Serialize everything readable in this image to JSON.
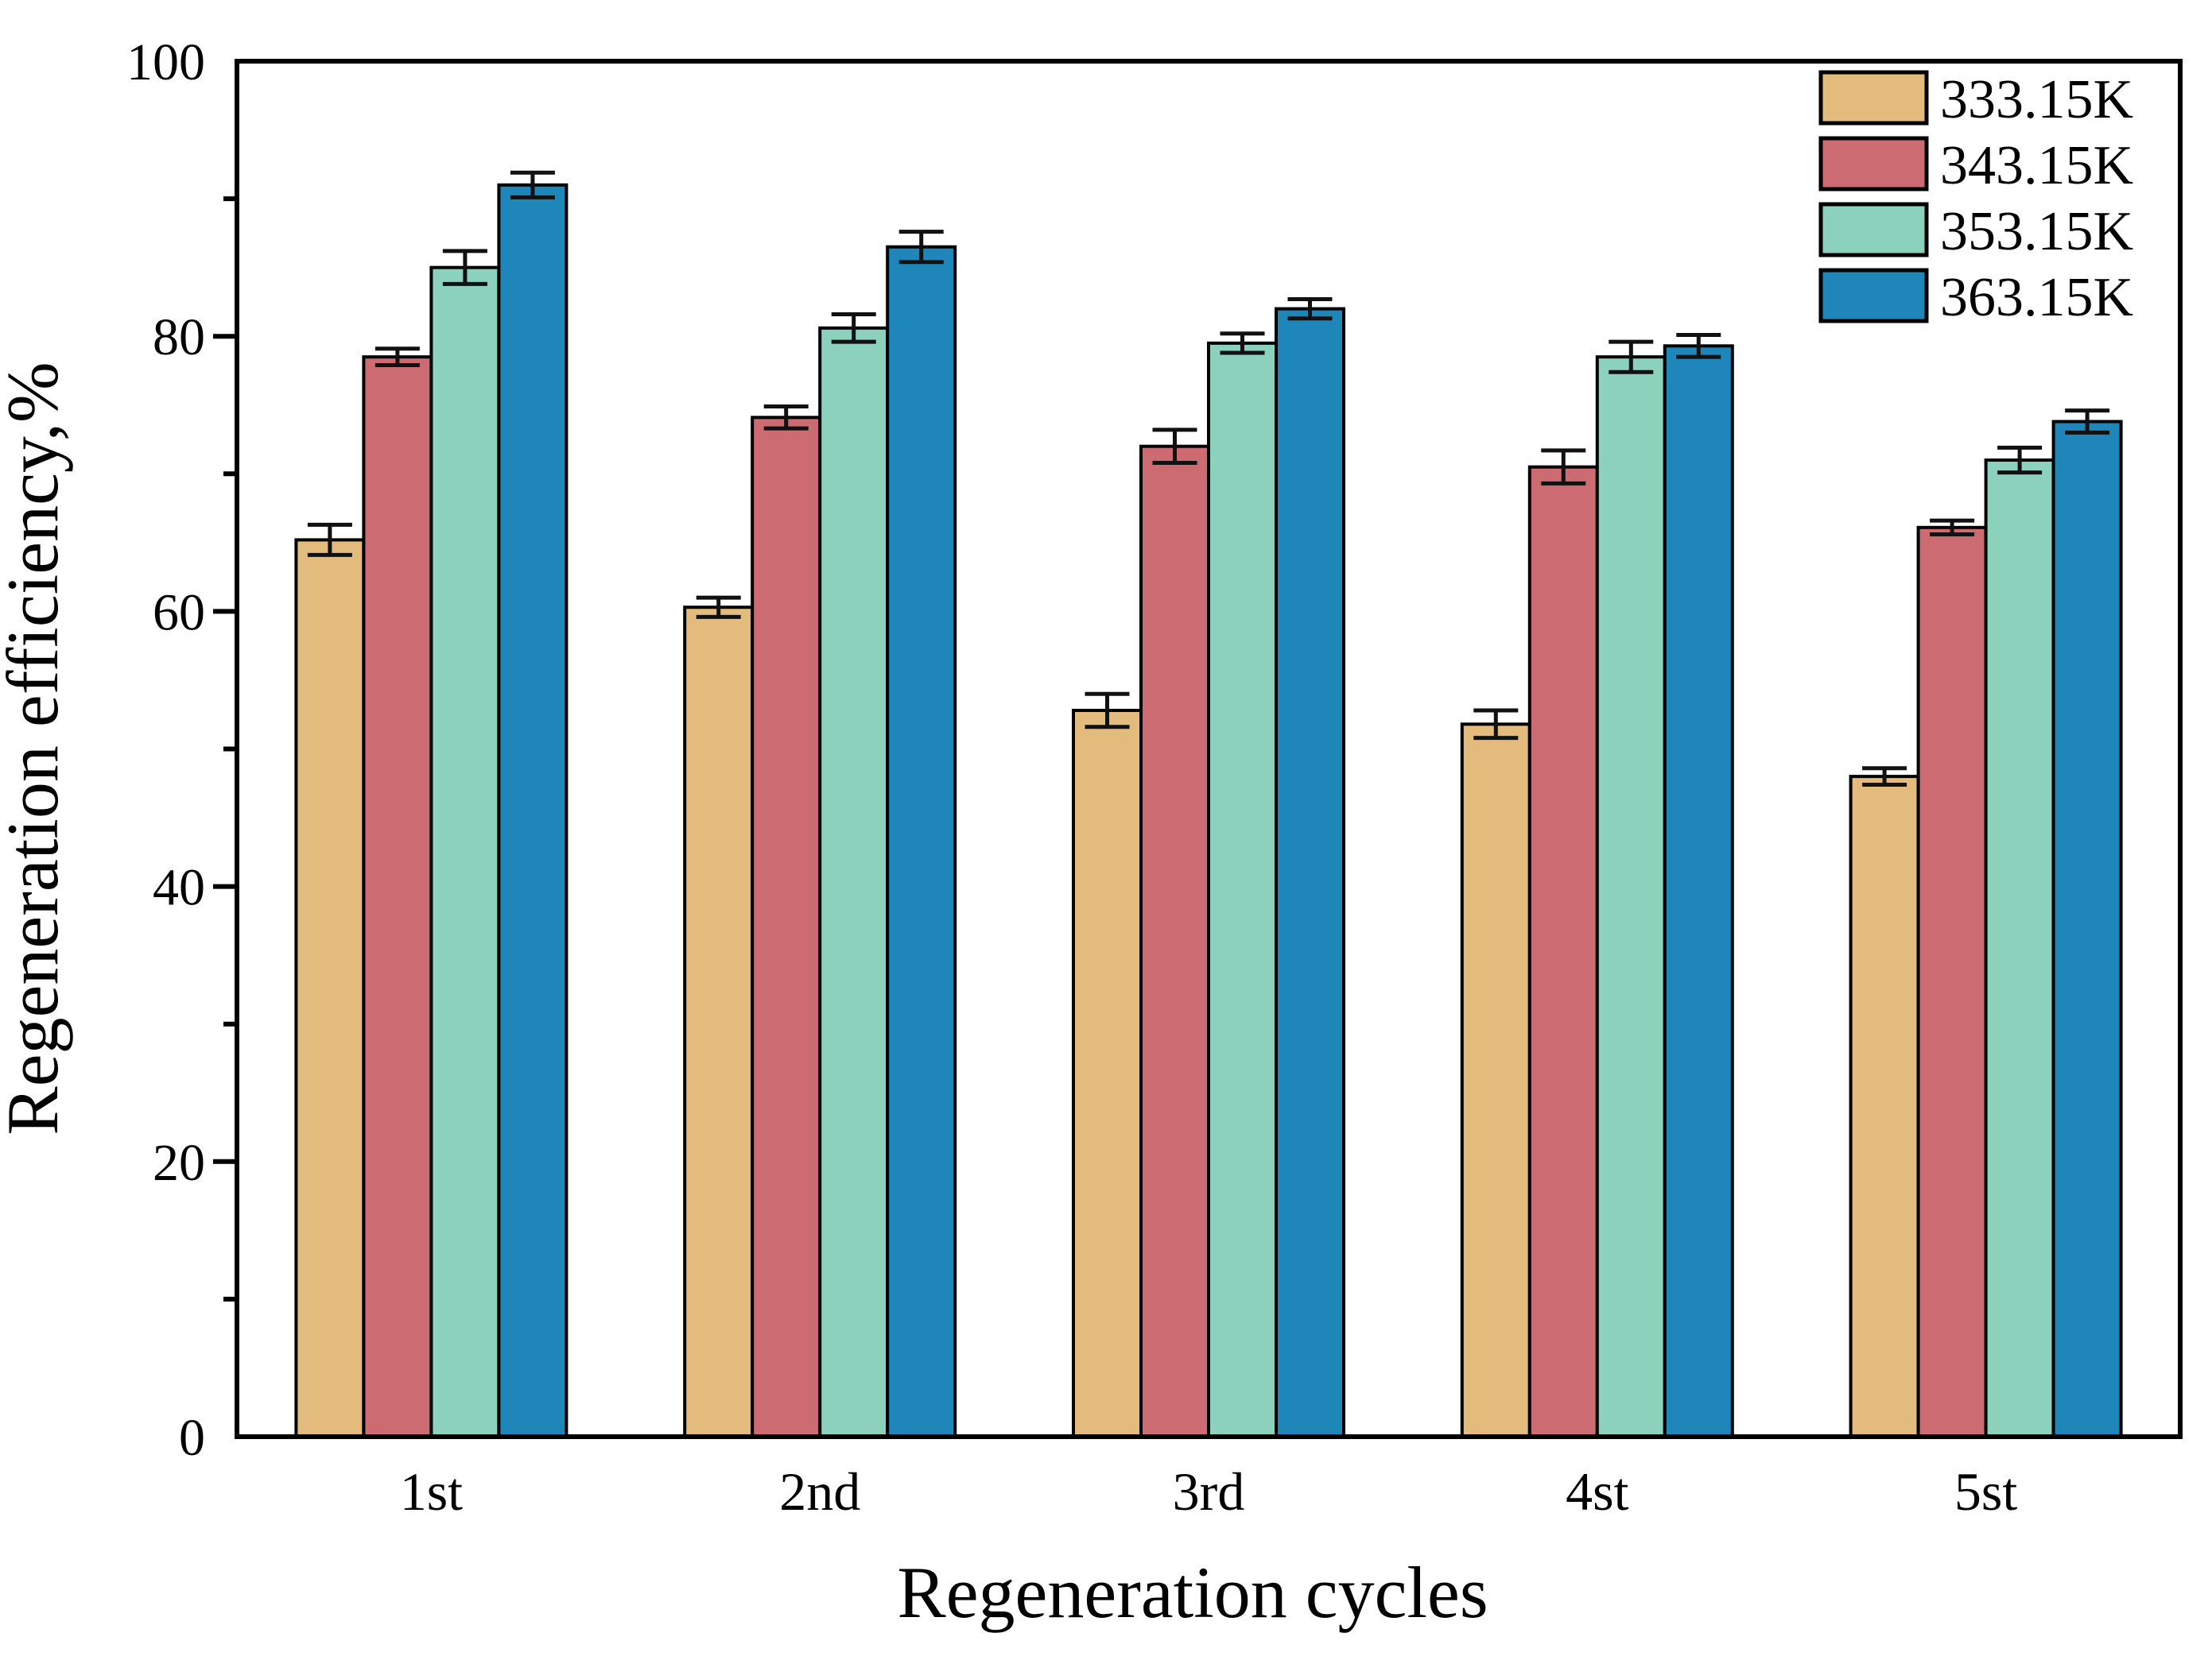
{
  "chart_data": {
    "type": "bar",
    "title": "",
    "xlabel": "Regeneration cycles",
    "ylabel": "Regeneration efficiency,%",
    "categories": [
      "1st",
      "2nd",
      "3rd",
      "4st",
      "5st"
    ],
    "series": [
      {
        "name": "333.15K",
        "color": "#E3BB7C",
        "values": [
          65.2,
          60.3,
          52.8,
          51.8,
          48.0
        ],
        "errors": [
          1.1,
          0.7,
          1.2,
          1.0,
          0.6
        ]
      },
      {
        "name": "343.15K",
        "color": "#CC6B72",
        "values": [
          78.5,
          74.1,
          72.0,
          70.5,
          66.1
        ],
        "errors": [
          0.6,
          0.8,
          1.2,
          1.2,
          0.5
        ]
      },
      {
        "name": "353.15K",
        "color": "#8BD1BC",
        "values": [
          85.0,
          80.6,
          79.5,
          78.5,
          71.0
        ],
        "errors": [
          1.2,
          1.0,
          0.7,
          1.1,
          0.9
        ]
      },
      {
        "name": "363.15K",
        "color": "#1E86B9",
        "values": [
          91.0,
          86.5,
          82.0,
          79.3,
          73.8
        ],
        "errors": [
          0.9,
          1.1,
          0.7,
          0.8,
          0.8
        ]
      }
    ],
    "ylim": [
      0,
      100
    ],
    "yticks_major": [
      0,
      20,
      40,
      60,
      80,
      100
    ],
    "yticks_minor": [
      10,
      30,
      50,
      70,
      90
    ],
    "grid": false,
    "legend_position": "top-right",
    "axis_color": "#000000",
    "bar_outline_color": "#000000",
    "error_bar_color": "#111111"
  }
}
